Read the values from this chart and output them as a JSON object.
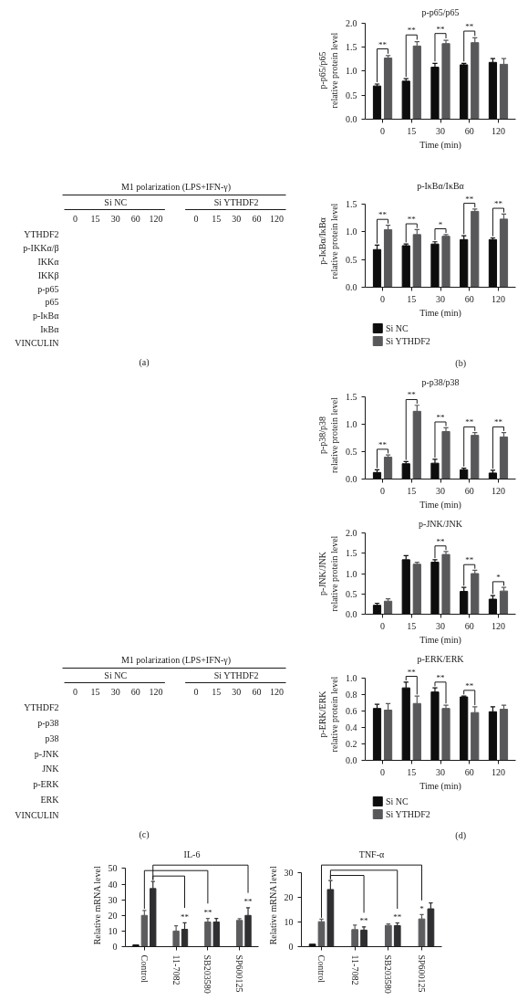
{
  "chart_data": [
    {
      "type": "bar",
      "title": "p-p65/p65",
      "xlabel": "Time (min)",
      "ylabel": "p-p65/p65\nrelative protein level",
      "categories": [
        "0",
        "15",
        "30",
        "60",
        "120"
      ],
      "series": [
        {
          "color": "#0d0d0d",
          "values": [
            0.69,
            0.79,
            1.08,
            1.13,
            1.18
          ],
          "errors": [
            [
              0.69,
              0.73
            ],
            [
              0.79,
              0.84
            ],
            [
              1.08,
              1.16
            ],
            [
              1.13,
              1.16
            ],
            [
              1.18,
              1.26
            ]
          ]
        },
        {
          "color": "#58585b",
          "values": [
            1.27,
            1.52,
            1.57,
            1.59,
            1.14
          ],
          "errors": [
            [
              1.27,
              1.32
            ],
            [
              1.52,
              1.61
            ],
            [
              1.57,
              1.64
            ],
            [
              1.59,
              1.69
            ],
            [
              1.14,
              1.26
            ]
          ]
        }
      ],
      "ylim": [
        0,
        2.0
      ],
      "yticks": [
        {
          "value": 0,
          "label": "0.0"
        },
        0.5,
        {
          "value": 1,
          "label": "1.0"
        },
        1.5,
        {
          "value": 2,
          "label": "2.0"
        }
      ],
      "annotations": [
        {
          "text": "**",
          "x": "0",
          "y": 1.27
        },
        {
          "text": "**",
          "x": "15",
          "y": 1.52
        },
        {
          "text": "**",
          "x": "30",
          "y": 1.57
        },
        {
          "text": "**",
          "x": "60",
          "y": 1.59
        }
      ]
    },
    {
      "type": "other",
      "title": "M1 polarization (LPS+IFN-γ)",
      "categories": [
        "0",
        "15",
        "30",
        "60",
        "120",
        null,
        "0",
        "15",
        "30",
        "60",
        "120"
      ],
      "y_categories": [
        "YTHDF2",
        "p-IKKα/β",
        "IKKα",
        "IKKβ",
        "p-p65",
        "p65",
        "p-IκBα",
        "IκBα",
        "VINCULIN"
      ],
      "annotations": [
        "Si NC",
        "Si YTHDF2",
        "(a)"
      ]
    },
    {
      "type": "bar",
      "title": "p-IκBα/IκBα",
      "xlabel": "Time (min)",
      "ylabel": "p-IκBα/IκBα\nrelative protein level",
      "categories": [
        "0",
        "15",
        "30",
        "60",
        "120"
      ],
      "series": [
        {
          "name": "Si NC",
          "color": "#0d0d0d",
          "values": [
            0.68,
            0.75,
            0.78,
            0.86,
            0.86
          ],
          "errors": [
            [
              0.68,
              0.76
            ],
            [
              0.75,
              0.78
            ],
            [
              0.78,
              0.82
            ],
            [
              0.86,
              0.93
            ],
            [
              0.86,
              0.89
            ]
          ]
        },
        {
          "name": "Si YTHDF2",
          "color": "#58585b",
          "values": [
            1.04,
            0.95,
            0.92,
            1.37,
            1.23
          ],
          "errors": [
            [
              1.04,
              1.12
            ],
            [
              0.95,
              1.04
            ],
            [
              0.92,
              0.95
            ],
            [
              1.37,
              1.41
            ],
            [
              1.23,
              1.32
            ]
          ]
        }
      ],
      "ylim": [
        0,
        1.5
      ],
      "yticks": [
        {
          "value": 0,
          "label": "0.0"
        },
        0.5,
        {
          "value": 1,
          "label": "1.0"
        },
        1.5
      ],
      "legend": "bottom",
      "annotations": [
        {
          "text": "**",
          "x": "0",
          "y": 1.04
        },
        {
          "text": "**",
          "x": "15",
          "y": 0.95
        },
        {
          "text": "*",
          "x": "30",
          "y": 0.92
        },
        {
          "text": "**",
          "x": "60",
          "y": 1.37
        },
        {
          "text": "**",
          "x": "120",
          "y": 1.23
        },
        "(b)"
      ]
    },
    {
      "type": "bar",
      "title": "p-p38/p38",
      "xlabel": "Time (min)",
      "ylabel": "p-p38/p38\nrelative protein level",
      "categories": [
        "0",
        "15",
        "30",
        "60",
        "120"
      ],
      "series": [
        {
          "color": "#0d0d0d",
          "values": [
            0.12,
            0.28,
            0.29,
            0.17,
            0.11
          ],
          "errors": [
            [
              0.12,
              0.17
            ],
            [
              0.28,
              0.32
            ],
            [
              0.29,
              0.36
            ],
            [
              0.17,
              0.2
            ],
            [
              0.11,
              0.16
            ]
          ]
        },
        {
          "color": "#58585b",
          "values": [
            0.4,
            1.24,
            0.87,
            0.8,
            0.77
          ],
          "errors": [
            [
              0.4,
              0.44
            ],
            [
              1.24,
              1.35
            ],
            [
              0.87,
              0.94
            ],
            [
              0.8,
              0.85
            ],
            [
              0.77,
              0.85
            ]
          ]
        }
      ],
      "ylim": [
        0,
        1.5
      ],
      "yticks": [
        {
          "value": 0,
          "label": "0.0"
        },
        0.5,
        {
          "value": 1,
          "label": "1.0"
        },
        1.5
      ],
      "annotations": [
        {
          "text": "**",
          "x": "0",
          "y": 0.4
        },
        {
          "text": "**",
          "x": "15",
          "y": 1.24
        },
        {
          "text": "**",
          "x": "30",
          "y": 0.87
        },
        {
          "text": "**",
          "x": "60",
          "y": 0.8
        },
        {
          "text": "**",
          "x": "120",
          "y": 0.77
        }
      ]
    },
    {
      "type": "bar",
      "title": "p-JNK/JNK",
      "xlabel": "Time (min)",
      "ylabel": "p-JNK/JNK\nrelative protein level",
      "categories": [
        "0",
        "15",
        "30",
        "60",
        "120"
      ],
      "series": [
        {
          "color": "#0d0d0d",
          "values": [
            0.22,
            1.34,
            1.28,
            0.56,
            0.37
          ],
          "errors": [
            [
              0.22,
              0.27
            ],
            [
              1.34,
              1.44
            ],
            [
              1.28,
              1.34
            ],
            [
              0.56,
              0.66
            ],
            [
              0.37,
              0.46
            ]
          ]
        },
        {
          "color": "#58585b",
          "values": [
            0.32,
            1.23,
            1.47,
            1.0,
            0.57
          ],
          "errors": [
            [
              0.32,
              0.38
            ],
            [
              1.23,
              1.28
            ],
            [
              1.47,
              1.54
            ],
            [
              1.0,
              1.08
            ],
            [
              0.57,
              0.66
            ]
          ]
        }
      ],
      "ylim": [
        0,
        2.0
      ],
      "yticks": [
        {
          "value": 0,
          "label": "0.0"
        },
        0.5,
        {
          "value": 1,
          "label": "1.0"
        },
        1.5,
        {
          "value": 2,
          "label": "2.0"
        }
      ],
      "annotations": [
        {
          "text": "**",
          "x": "30",
          "y": 1.47
        },
        {
          "text": "**",
          "x": "60",
          "y": 1.0
        },
        {
          "text": "*",
          "x": "120",
          "y": 0.57
        }
      ]
    },
    {
      "type": "other",
      "title": "M1 polarization (LPS+IFN-γ)",
      "categories": [
        "0",
        "15",
        "30",
        "60",
        "120",
        null,
        "0",
        "15",
        "30",
        "60",
        "120"
      ],
      "y_categories": [
        "YTHDF2",
        "p-p38",
        "p38",
        "p-JNK",
        "JNK",
        "p-ERK",
        "ERK",
        "VINCULIN"
      ],
      "annotations": [
        "Si NC",
        "Si YTHDF2",
        "(c)"
      ]
    },
    {
      "type": "bar",
      "title": "p-ERK/ERK",
      "xlabel": "Time (min)",
      "ylabel": "p-ERK/ERK\nrelative protein level",
      "categories": [
        "0",
        "15",
        "30",
        "60",
        "120"
      ],
      "series": [
        {
          "name": "Si NC",
          "color": "#0d0d0d",
          "values": [
            0.63,
            0.88,
            0.83,
            0.77,
            0.59
          ],
          "errors": [
            [
              0.63,
              0.68
            ],
            [
              0.88,
              0.95
            ],
            [
              0.83,
              0.88
            ],
            [
              0.77,
              0.78
            ],
            [
              0.59,
              0.65
            ]
          ]
        },
        {
          "name": "Si YTHDF2",
          "color": "#58585b",
          "values": [
            0.61,
            0.69,
            0.63,
            0.58,
            0.62
          ],
          "errors": [
            [
              0.61,
              0.69
            ],
            [
              0.69,
              0.78
            ],
            [
              0.63,
              0.67
            ],
            [
              0.58,
              0.65
            ],
            [
              0.62,
              0.67
            ]
          ]
        }
      ],
      "ylim": [
        0,
        1.0
      ],
      "yticks": [
        {
          "value": 0,
          "label": "0.0"
        },
        0.2,
        0.4,
        0.6,
        0.8,
        {
          "value": 1,
          "label": "1.0"
        }
      ],
      "legend": "bottom",
      "annotations": [
        {
          "text": "**",
          "x": "15",
          "y": 0.88
        },
        {
          "text": "**",
          "x": "30",
          "y": 0.83
        },
        {
          "text": "**",
          "x": "60",
          "y": 0.77
        },
        "(d)"
      ]
    },
    {
      "type": "bar",
      "title": "IL-6",
      "ylabel": "Relative mRNA level",
      "categories": [
        "Control",
        "11-7082",
        "SB203580",
        "SP600125"
      ],
      "series": [
        {
          "color": "#111111",
          "values": [
            1.1,
            null,
            null,
            null
          ]
        },
        {
          "color": "#5c5c5e",
          "values": [
            20.0,
            10.0,
            15.8,
            16.8
          ],
          "errors": [
            [
              20.0,
              23.2
            ],
            [
              10.0,
              13.4
            ],
            [
              15.8,
              18.1
            ],
            [
              16.8,
              17.9
            ]
          ]
        },
        {
          "color": "#2f2f31",
          "values": [
            37.2,
            11.1,
            15.8,
            20.0
          ],
          "errors": [
            [
              37.2,
              41.7
            ],
            [
              11.1,
              15.3
            ],
            [
              15.8,
              18.1
            ],
            [
              20.0,
              24.9
            ]
          ]
        }
      ],
      "ylim": [
        0,
        50
      ],
      "yticks": [
        0,
        10,
        20,
        30,
        40,
        50
      ],
      "annotations": [
        {
          "text": "**",
          "x": "11-7082",
          "y": 11.1
        },
        {
          "text": "**",
          "x": "SB203580",
          "y": 15.8
        },
        {
          "text": "**",
          "x": "SP600125",
          "y": 20.0
        }
      ]
    },
    {
      "type": "bar",
      "title": "TNF-α",
      "ylabel": "Relative mRNA level",
      "categories": [
        "Control",
        "11-7082",
        "SB203580",
        "SP600125"
      ],
      "series": [
        {
          "color": "#111111",
          "values": [
            1.0,
            null,
            null,
            null
          ]
        },
        {
          "color": "#5c5c5e",
          "values": [
            10.1,
            6.9,
            8.6,
            11.2
          ],
          "errors": [
            [
              10.1,
              11.1
            ],
            [
              6.9,
              8.7
            ],
            [
              8.6,
              9.2
            ],
            [
              11.2,
              13.0
            ]
          ]
        },
        {
          "color": "#2f2f31",
          "values": [
            23.1,
            6.7,
            8.5,
            15.3
          ],
          "errors": [
            [
              23.1,
              26.7
            ],
            [
              6.7,
              8.0
            ],
            [
              8.5,
              9.6
            ],
            [
              15.3,
              17.7
            ]
          ]
        }
      ],
      "ylim": [
        0,
        30
      ],
      "yticks": [
        0,
        10,
        20,
        30
      ],
      "annotations": [
        {
          "text": "**",
          "x": "11-7082",
          "y": 6.7
        },
        {
          "text": "**",
          "x": "SB203580",
          "y": 8.5
        },
        {
          "text": "*",
          "x": "SP600125",
          "y": 11.2
        }
      ]
    }
  ]
}
